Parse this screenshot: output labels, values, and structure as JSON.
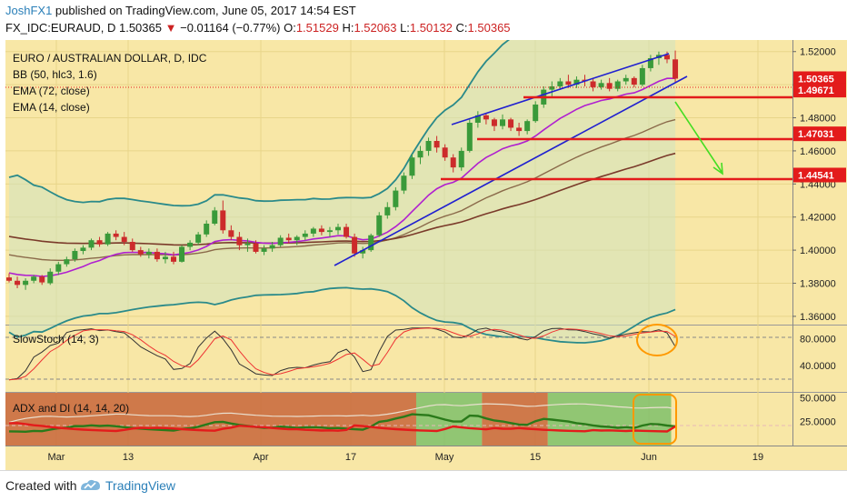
{
  "header": {
    "author": "JoshFX1",
    "published_text": " published on TradingView.com, June 05, 2017 14:54 EST",
    "symbol": "FX_IDC:EURAUD, D",
    "last": "1.50365",
    "change": "−0.01164 (−0.77%)",
    "o_label": "O:",
    "o_value": "1.51529",
    "h_label": "H:",
    "h_value": "1.52063",
    "l_label": "L:",
    "l_value": "1.50132",
    "c_label": "C:",
    "c_value": "1.50365",
    "down_arrow": "▼"
  },
  "legend": {
    "title": "EURO / AUSTRALIAN DOLLAR, D, IDC",
    "bb": "BB (50, hlc3, 1.6)",
    "ema72": "EMA (72, close)",
    "ema14": "EMA (14, close)"
  },
  "price_axis": {
    "ticks": [
      "1.52000",
      "1.50000",
      "1.48000",
      "1.46000",
      "1.44000",
      "1.42000",
      "1.40000",
      "1.38000",
      "1.36000"
    ],
    "tags": [
      {
        "label": "1.50365",
        "color": "#e31b1b"
      },
      {
        "label": "1.49671",
        "color": "#e31b1b"
      },
      {
        "label": "1.47031",
        "color": "#e31b1b"
      },
      {
        "label": "1.44541",
        "color": "#e31b1b"
      }
    ]
  },
  "stoch": {
    "label": "SlowStoch (14, 3)",
    "ticks": [
      "80.0000",
      "40.0000"
    ]
  },
  "adx": {
    "label": "ADX and DI (14, 14, 20)",
    "ticks": [
      "50.0000",
      "25.0000"
    ]
  },
  "time_axis": {
    "ticks": [
      "Mar",
      "13",
      "Apr",
      "17",
      "May",
      "15",
      "Jun",
      "19"
    ]
  },
  "footer": {
    "created": "Created with",
    "brand": "TradingView"
  },
  "chart_data": [
    {
      "type": "candlestick",
      "title": "EURO / AUSTRALIAN DOLLAR, D, IDC",
      "interval": "D",
      "ylim": [
        1.355,
        1.527
      ],
      "colors": {
        "up": "#3a9a3a",
        "down": "#cc2b2b",
        "background": "#f8e7a6"
      },
      "candles": [
        {
          "o": 1.3835,
          "h": 1.386,
          "l": 1.3805,
          "c": 1.3815
        },
        {
          "o": 1.3815,
          "h": 1.384,
          "l": 1.377,
          "c": 1.379
        },
        {
          "o": 1.379,
          "h": 1.383,
          "l": 1.376,
          "c": 1.3815
        },
        {
          "o": 1.3815,
          "h": 1.385,
          "l": 1.38,
          "c": 1.384
        },
        {
          "o": 1.384,
          "h": 1.385,
          "l": 1.379,
          "c": 1.3805
        },
        {
          "o": 1.38,
          "h": 1.389,
          "l": 1.379,
          "c": 1.387
        },
        {
          "o": 1.387,
          "h": 1.393,
          "l": 1.385,
          "c": 1.3915
        },
        {
          "o": 1.3915,
          "h": 1.396,
          "l": 1.39,
          "c": 1.3945
        },
        {
          "o": 1.3945,
          "h": 1.401,
          "l": 1.393,
          "c": 1.3995
        },
        {
          "o": 1.3995,
          "h": 1.403,
          "l": 1.3975,
          "c": 1.4015
        },
        {
          "o": 1.4015,
          "h": 1.407,
          "l": 1.4,
          "c": 1.406
        },
        {
          "o": 1.406,
          "h": 1.408,
          "l": 1.402,
          "c": 1.4035
        },
        {
          "o": 1.4035,
          "h": 1.411,
          "l": 1.4025,
          "c": 1.41
        },
        {
          "o": 1.41,
          "h": 1.412,
          "l": 1.406,
          "c": 1.408
        },
        {
          "o": 1.408,
          "h": 1.411,
          "l": 1.403,
          "c": 1.405
        },
        {
          "o": 1.405,
          "h": 1.407,
          "l": 1.399,
          "c": 1.4
        },
        {
          "o": 1.4,
          "h": 1.402,
          "l": 1.396,
          "c": 1.3975
        },
        {
          "o": 1.3975,
          "h": 1.401,
          "l": 1.395,
          "c": 1.399
        },
        {
          "o": 1.399,
          "h": 1.401,
          "l": 1.393,
          "c": 1.3945
        },
        {
          "o": 1.3945,
          "h": 1.399,
          "l": 1.392,
          "c": 1.396
        },
        {
          "o": 1.396,
          "h": 1.399,
          "l": 1.3915,
          "c": 1.393
        },
        {
          "o": 1.393,
          "h": 1.403,
          "l": 1.3925,
          "c": 1.402
        },
        {
          "o": 1.402,
          "h": 1.406,
          "l": 1.4,
          "c": 1.4045
        },
        {
          "o": 1.4045,
          "h": 1.411,
          "l": 1.403,
          "c": 1.4095
        },
        {
          "o": 1.4095,
          "h": 1.418,
          "l": 1.408,
          "c": 1.416
        },
        {
          "o": 1.416,
          "h": 1.426,
          "l": 1.415,
          "c": 1.424
        },
        {
          "o": 1.424,
          "h": 1.43,
          "l": 1.41,
          "c": 1.412
        },
        {
          "o": 1.412,
          "h": 1.415,
          "l": 1.406,
          "c": 1.408
        },
        {
          "o": 1.408,
          "h": 1.411,
          "l": 1.4,
          "c": 1.403
        },
        {
          "o": 1.403,
          "h": 1.407,
          "l": 1.399,
          "c": 1.404
        },
        {
          "o": 1.404,
          "h": 1.406,
          "l": 1.398,
          "c": 1.399
        },
        {
          "o": 1.399,
          "h": 1.403,
          "l": 1.397,
          "c": 1.401
        },
        {
          "o": 1.401,
          "h": 1.405,
          "l": 1.399,
          "c": 1.403
        },
        {
          "o": 1.403,
          "h": 1.409,
          "l": 1.402,
          "c": 1.4075
        },
        {
          "o": 1.4075,
          "h": 1.41,
          "l": 1.404,
          "c": 1.406
        },
        {
          "o": 1.406,
          "h": 1.409,
          "l": 1.403,
          "c": 1.408
        },
        {
          "o": 1.408,
          "h": 1.412,
          "l": 1.406,
          "c": 1.41
        },
        {
          "o": 1.41,
          "h": 1.414,
          "l": 1.408,
          "c": 1.413
        },
        {
          "o": 1.413,
          "h": 1.415,
          "l": 1.409,
          "c": 1.411
        },
        {
          "o": 1.411,
          "h": 1.414,
          "l": 1.408,
          "c": 1.412
        },
        {
          "o": 1.412,
          "h": 1.416,
          "l": 1.4095,
          "c": 1.414
        },
        {
          "o": 1.414,
          "h": 1.416,
          "l": 1.407,
          "c": 1.408
        },
        {
          "o": 1.408,
          "h": 1.41,
          "l": 1.396,
          "c": 1.398
        },
        {
          "o": 1.398,
          "h": 1.402,
          "l": 1.395,
          "c": 1.4
        },
        {
          "o": 1.4,
          "h": 1.41,
          "l": 1.399,
          "c": 1.409
        },
        {
          "o": 1.409,
          "h": 1.423,
          "l": 1.408,
          "c": 1.421
        },
        {
          "o": 1.421,
          "h": 1.429,
          "l": 1.419,
          "c": 1.426
        },
        {
          "o": 1.426,
          "h": 1.438,
          "l": 1.424,
          "c": 1.436
        },
        {
          "o": 1.436,
          "h": 1.447,
          "l": 1.434,
          "c": 1.445
        },
        {
          "o": 1.445,
          "h": 1.458,
          "l": 1.443,
          "c": 1.456
        },
        {
          "o": 1.456,
          "h": 1.463,
          "l": 1.452,
          "c": 1.46
        },
        {
          "o": 1.46,
          "h": 1.468,
          "l": 1.457,
          "c": 1.466
        },
        {
          "o": 1.466,
          "h": 1.469,
          "l": 1.459,
          "c": 1.462
        },
        {
          "o": 1.462,
          "h": 1.464,
          "l": 1.454,
          "c": 1.456
        },
        {
          "o": 1.456,
          "h": 1.458,
          "l": 1.447,
          "c": 1.45
        },
        {
          "o": 1.45,
          "h": 1.462,
          "l": 1.448,
          "c": 1.46
        },
        {
          "o": 1.46,
          "h": 1.479,
          "l": 1.459,
          "c": 1.477
        },
        {
          "o": 1.477,
          "h": 1.484,
          "l": 1.474,
          "c": 1.4815
        },
        {
          "o": 1.4815,
          "h": 1.483,
          "l": 1.476,
          "c": 1.479
        },
        {
          "o": 1.479,
          "h": 1.48,
          "l": 1.472,
          "c": 1.475
        },
        {
          "o": 1.475,
          "h": 1.482,
          "l": 1.473,
          "c": 1.479
        },
        {
          "o": 1.479,
          "h": 1.48,
          "l": 1.472,
          "c": 1.474
        },
        {
          "o": 1.474,
          "h": 1.477,
          "l": 1.469,
          "c": 1.472
        },
        {
          "o": 1.472,
          "h": 1.479,
          "l": 1.47,
          "c": 1.478
        },
        {
          "o": 1.478,
          "h": 1.49,
          "l": 1.477,
          "c": 1.488
        },
        {
          "o": 1.488,
          "h": 1.499,
          "l": 1.486,
          "c": 1.497
        },
        {
          "o": 1.497,
          "h": 1.502,
          "l": 1.493,
          "c": 1.499
        },
        {
          "o": 1.499,
          "h": 1.504,
          "l": 1.497,
          "c": 1.502
        },
        {
          "o": 1.502,
          "h": 1.506,
          "l": 1.498,
          "c": 1.5
        },
        {
          "o": 1.5,
          "h": 1.505,
          "l": 1.498,
          "c": 1.503
        },
        {
          "o": 1.503,
          "h": 1.506,
          "l": 1.499,
          "c": 1.502
        },
        {
          "o": 1.502,
          "h": 1.504,
          "l": 1.496,
          "c": 1.4985
        },
        {
          "o": 1.4985,
          "h": 1.503,
          "l": 1.497,
          "c": 1.501
        },
        {
          "o": 1.501,
          "h": 1.504,
          "l": 1.496,
          "c": 1.4975
        },
        {
          "o": 1.4975,
          "h": 1.503,
          "l": 1.496,
          "c": 1.502
        },
        {
          "o": 1.502,
          "h": 1.506,
          "l": 1.5,
          "c": 1.504
        },
        {
          "o": 1.504,
          "h": 1.505,
          "l": 1.4985,
          "c": 1.5
        },
        {
          "o": 1.5,
          "h": 1.512,
          "l": 1.499,
          "c": 1.51
        },
        {
          "o": 1.51,
          "h": 1.518,
          "l": 1.508,
          "c": 1.516
        },
        {
          "o": 1.516,
          "h": 1.52,
          "l": 1.512,
          "c": 1.518
        },
        {
          "o": 1.518,
          "h": 1.52,
          "l": 1.513,
          "c": 1.5153
        },
        {
          "o": 1.51529,
          "h": 1.52063,
          "l": 1.50132,
          "c": 1.50365
        }
      ]
    },
    {
      "type": "line",
      "title": "EMA (14, close) / EMA (72, close) / BB (50, hlc3, 1.6)",
      "ylim": [
        1.355,
        1.527
      ],
      "series": []
    },
    {
      "type": "line",
      "title": "SlowStoch (14, 3)",
      "ylim": [
        0,
        100
      ],
      "guides": [
        80,
        20
      ],
      "series": []
    },
    {
      "type": "line",
      "title": "ADX and DI (14, 14, 20)",
      "ylim": [
        0,
        55
      ],
      "threshold": 20,
      "shading": [
        {
          "from": 0,
          "to": 50,
          "color": "red"
        },
        {
          "from": 50,
          "to": 58,
          "color": "green"
        },
        {
          "from": 58,
          "to": 66,
          "color": "red"
        },
        {
          "from": 66,
          "to": 81,
          "color": "green"
        }
      ],
      "series": []
    }
  ]
}
